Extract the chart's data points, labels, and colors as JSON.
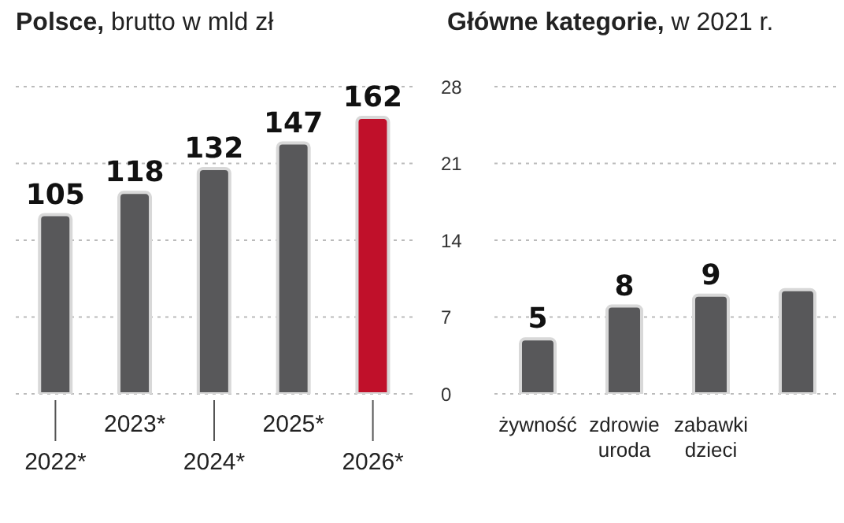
{
  "chart_data": [
    {
      "type": "bar",
      "title": "Polsce,",
      "subtitle": "brutto w mld zł",
      "categories": [
        "2022*",
        "2023*",
        "2024*",
        "2025*",
        "2026*"
      ],
      "values": [
        105,
        118,
        132,
        147,
        162
      ],
      "colors": [
        "#58585a",
        "#58585a",
        "#58585a",
        "#58585a",
        "#c0102a"
      ],
      "data_labels": true,
      "ylim": [
        0,
        180
      ],
      "yticks": [
        {
          "value": 0,
          "label": null
        },
        {
          "value": 45,
          "label": null
        },
        {
          "value": 90,
          "label": null
        },
        {
          "value": 135,
          "label": null
        },
        {
          "value": 180,
          "label": null
        }
      ],
      "grid": "y",
      "tick_labels": "x"
    },
    {
      "type": "bar",
      "title": "Główne kategorie,",
      "subtitle": "w 2021 r.",
      "categories": [
        "żywność",
        "zdrowie\nuroda",
        "zabawki\ndzieci",
        null
      ],
      "values": [
        5,
        8,
        9,
        9.5
      ],
      "color": "#58585a",
      "value_labels": [
        "5",
        "8",
        "9",
        null
      ],
      "ylim": [
        0,
        28
      ],
      "yticks": [
        0,
        7,
        14,
        21,
        28
      ],
      "grid": "y"
    }
  ]
}
